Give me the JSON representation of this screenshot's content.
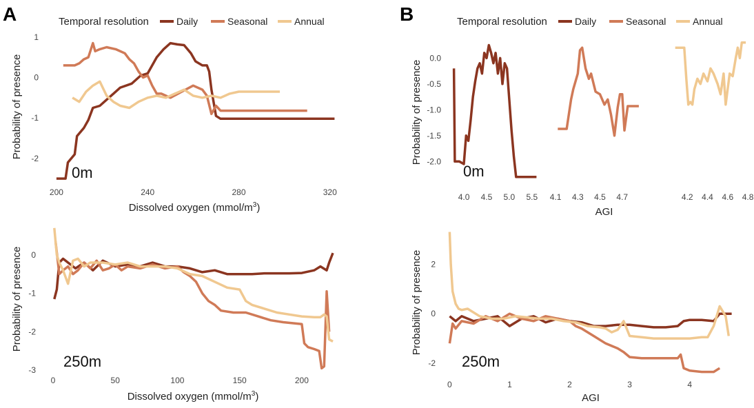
{
  "panel_letters": {
    "a": "A",
    "b": "B"
  },
  "legends": {
    "title": "Temporal resolution",
    "items": [
      {
        "label": "Daily",
        "color": "#8B3520"
      },
      {
        "label": "Seasonal",
        "color": "#D07A57"
      },
      {
        "label": "Annual",
        "color": "#F0C890"
      }
    ]
  },
  "chart_data": [
    {
      "id": "A_0m",
      "type": "line",
      "panel": "A",
      "depth": "0m",
      "xlabel": "Dissolved oxygen (mmol/m",
      "xlabel_sup": "3",
      "xlabel_end": ")",
      "ylabel": "Probability of presence",
      "xlim": [
        197,
        324
      ],
      "ylim": [
        -2.6,
        1.15
      ],
      "xticks": [
        200,
        240,
        280,
        320
      ],
      "yticks": [
        1,
        0,
        -1,
        -2
      ],
      "series": [
        {
          "name": "Daily",
          "color": "#8B3520",
          "x": [
            200,
            204,
            205,
            208,
            209,
            212,
            214,
            216,
            219,
            222,
            225,
            228,
            233,
            237,
            240,
            242,
            244,
            247,
            250,
            253,
            256,
            259,
            261,
            264,
            266,
            267,
            268,
            270,
            272,
            322
          ],
          "y": [
            -2.5,
            -2.5,
            -2.1,
            -1.9,
            -1.45,
            -1.25,
            -1.05,
            -0.75,
            -0.7,
            -0.55,
            -0.4,
            -0.25,
            -0.15,
            0.05,
            0.1,
            0.3,
            0.5,
            0.7,
            0.85,
            0.82,
            0.8,
            0.6,
            0.4,
            0.3,
            0.3,
            0.15,
            -0.3,
            -0.95,
            -1.02,
            -1.02
          ]
        },
        {
          "name": "Seasonal",
          "color": "#D07A57",
          "x": [
            203,
            208,
            210,
            212,
            214,
            216,
            217,
            219,
            222,
            226,
            230,
            232,
            234,
            236,
            238,
            240,
            242,
            244,
            246,
            250,
            255,
            260,
            264,
            266,
            268,
            270,
            272,
            276,
            280,
            310
          ],
          "y": [
            0.3,
            0.3,
            0.35,
            0.45,
            0.5,
            0.85,
            0.65,
            0.7,
            0.75,
            0.7,
            0.6,
            0.45,
            0.35,
            0.15,
            0.0,
            0.05,
            -0.2,
            -0.4,
            -0.4,
            -0.5,
            -0.35,
            -0.2,
            -0.3,
            -0.45,
            -0.9,
            -0.7,
            -0.82,
            -0.82,
            -0.82,
            -0.82
          ]
        },
        {
          "name": "Annual",
          "color": "#F0C890",
          "x": [
            207,
            210,
            213,
            216,
            219,
            222,
            225,
            228,
            232,
            236,
            240,
            244,
            248,
            252,
            256,
            260,
            264,
            268,
            272,
            276,
            280,
            285,
            290,
            298
          ],
          "y": [
            -0.5,
            -0.6,
            -0.35,
            -0.2,
            -0.1,
            -0.45,
            -0.6,
            -0.7,
            -0.75,
            -0.6,
            -0.5,
            -0.45,
            -0.5,
            -0.4,
            -0.3,
            -0.45,
            -0.5,
            -0.45,
            -0.5,
            -0.4,
            -0.35,
            -0.35,
            -0.35,
            -0.35
          ]
        }
      ]
    },
    {
      "id": "A_250m",
      "type": "line",
      "panel": "A",
      "depth": "250m",
      "xlabel": "Dissolved oxygen (mmol/m",
      "xlabel_sup": "3",
      "xlabel_end": ")",
      "ylabel": "Probability of presence",
      "xlim": [
        -5,
        230
      ],
      "ylim": [
        -3.05,
        0.75
      ],
      "xticks": [
        0,
        50,
        100,
        150,
        200
      ],
      "yticks": [
        0,
        -1,
        -2,
        -3
      ],
      "series": [
        {
          "name": "Daily",
          "color": "#8B3520",
          "x": [
            1,
            3,
            5,
            8,
            12,
            18,
            25,
            32,
            40,
            50,
            60,
            70,
            80,
            90,
            100,
            110,
            120,
            130,
            140,
            150,
            160,
            170,
            180,
            190,
            200,
            210,
            215,
            220,
            222,
            225
          ],
          "y": [
            -1.15,
            -0.9,
            -0.2,
            -0.1,
            -0.2,
            -0.35,
            -0.2,
            -0.4,
            -0.15,
            -0.3,
            -0.25,
            -0.3,
            -0.2,
            -0.3,
            -0.3,
            -0.35,
            -0.45,
            -0.4,
            -0.5,
            -0.5,
            -0.5,
            -0.48,
            -0.48,
            -0.48,
            -0.47,
            -0.4,
            -0.3,
            -0.4,
            -0.2,
            0.05
          ]
        },
        {
          "name": "Seasonal",
          "color": "#D07A57",
          "x": [
            2,
            5,
            8,
            12,
            16,
            20,
            25,
            30,
            35,
            40,
            45,
            50,
            55,
            60,
            70,
            80,
            90,
            100,
            105,
            110,
            115,
            120,
            125,
            130,
            135,
            145,
            155,
            165,
            175,
            185,
            200,
            202,
            205,
            210,
            214,
            216,
            218,
            220,
            222
          ],
          "y": [
            0.35,
            -0.5,
            -0.4,
            -0.3,
            -0.5,
            -0.4,
            -0.2,
            -0.35,
            -0.15,
            -0.4,
            -0.35,
            -0.25,
            -0.4,
            -0.3,
            -0.35,
            -0.25,
            -0.35,
            -0.3,
            -0.45,
            -0.55,
            -0.7,
            -1.0,
            -1.2,
            -1.3,
            -1.45,
            -1.5,
            -1.5,
            -1.6,
            -1.7,
            -1.75,
            -1.8,
            -2.3,
            -2.4,
            -2.45,
            -2.5,
            -2.95,
            -2.9,
            -0.95,
            -2.0
          ]
        },
        {
          "name": "Annual",
          "color": "#F0C890",
          "x": [
            1,
            3,
            5,
            8,
            12,
            16,
            20,
            25,
            30,
            40,
            50,
            60,
            70,
            80,
            90,
            100,
            110,
            120,
            130,
            140,
            150,
            155,
            160,
            170,
            180,
            190,
            200,
            210,
            215,
            218,
            220,
            222,
            225
          ],
          "y": [
            0.7,
            0.0,
            -0.2,
            -0.4,
            -0.75,
            -0.15,
            -0.1,
            -0.3,
            -0.2,
            -0.2,
            -0.25,
            -0.2,
            -0.3,
            -0.3,
            -0.3,
            -0.35,
            -0.5,
            -0.55,
            -0.7,
            -0.85,
            -0.9,
            -1.2,
            -1.3,
            -1.4,
            -1.5,
            -1.55,
            -1.6,
            -1.62,
            -1.62,
            -1.55,
            -1.6,
            -2.2,
            -2.25
          ]
        }
      ]
    },
    {
      "id": "B_0m",
      "type": "line",
      "panel": "B",
      "depth": "0m",
      "xlabel": "AGI",
      "ylabel": "Probability of presence",
      "ylim": [
        -2.45,
        0.35
      ],
      "yticks": [
        0.0,
        -0.5,
        -1.0,
        -1.5,
        -2.0
      ],
      "subplots": [
        {
          "name": "Daily",
          "color": "#8B3520",
          "xlim": [
            3.65,
            5.7
          ],
          "xticks": [
            4.0,
            4.5,
            5.0,
            5.5
          ],
          "x": [
            3.78,
            3.8,
            3.85,
            3.9,
            4.0,
            4.05,
            4.1,
            4.15,
            4.2,
            4.25,
            4.3,
            4.35,
            4.4,
            4.45,
            4.5,
            4.55,
            4.6,
            4.65,
            4.7,
            4.75,
            4.8,
            4.85,
            4.9,
            4.95,
            5.0,
            5.05,
            5.1,
            5.15,
            5.2,
            5.6
          ],
          "y": [
            -0.2,
            -2.0,
            -2.0,
            -2.0,
            -2.05,
            -1.5,
            -1.6,
            -1.2,
            -0.75,
            -0.45,
            -0.2,
            -0.1,
            -0.3,
            0.1,
            0.0,
            0.25,
            0.1,
            -0.1,
            0.1,
            -0.3,
            0.0,
            -0.5,
            -0.1,
            -0.2,
            -0.8,
            -1.4,
            -1.9,
            -2.3,
            -2.3,
            -2.3
          ]
        },
        {
          "name": "Seasonal",
          "color": "#D07A57",
          "x": [
            4.12,
            4.2,
            4.24,
            4.26,
            4.3,
            4.32,
            4.34,
            4.37,
            4.4,
            4.42,
            4.46,
            4.5,
            4.54,
            4.57,
            4.6,
            4.63,
            4.66,
            4.68,
            4.7,
            4.72,
            4.75,
            4.8,
            4.85
          ],
          "y": [
            -1.37,
            -1.37,
            -0.8,
            -0.6,
            -0.3,
            0.15,
            0.2,
            -0.2,
            -0.4,
            -0.3,
            -0.65,
            -0.7,
            -0.9,
            -0.8,
            -1.1,
            -1.5,
            -0.95,
            -0.7,
            -0.7,
            -1.4,
            -0.93,
            -0.93,
            -0.93
          ]
        },
        {
          "name": "Annual",
          "color": "#F0C890",
          "xlim": [
            3.85,
            4.82
          ],
          "xticks": [
            4.2,
            4.4,
            4.6,
            4.8
          ],
          "x": [
            4.08,
            4.13,
            4.17,
            4.19,
            4.21,
            4.23,
            4.25,
            4.27,
            4.3,
            4.33,
            4.36,
            4.4,
            4.43,
            4.46,
            4.5,
            4.53,
            4.56,
            4.58,
            4.6,
            4.62,
            4.65,
            4.68,
            4.7,
            4.72,
            4.74,
            4.78
          ],
          "y": [
            0.2,
            0.2,
            0.2,
            -0.4,
            -0.9,
            -0.85,
            -0.9,
            -0.6,
            -0.4,
            -0.5,
            -0.3,
            -0.45,
            -0.2,
            -0.3,
            -0.5,
            -0.7,
            -0.3,
            -0.9,
            -0.6,
            -0.3,
            -0.35,
            0.0,
            0.2,
            0.0,
            0.3,
            0.3
          ]
        }
      ]
    },
    {
      "id": "B_250m",
      "type": "line",
      "panel": "B",
      "depth": "250m",
      "xlabel": "AGI",
      "ylabel": "Probability of presence",
      "xlim": [
        -0.05,
        4.75
      ],
      "ylim": [
        -2.5,
        3.4
      ],
      "xticks": [
        0,
        1,
        2,
        3,
        4
      ],
      "yticks": [
        2,
        0,
        -2
      ],
      "series": [
        {
          "name": "Daily",
          "color": "#8B3520",
          "x": [
            0.0,
            0.1,
            0.2,
            0.4,
            0.6,
            0.8,
            1.0,
            1.2,
            1.4,
            1.6,
            1.8,
            2.0,
            2.2,
            2.4,
            2.6,
            2.8,
            3.0,
            3.2,
            3.4,
            3.6,
            3.8,
            3.9,
            4.0,
            4.2,
            4.4,
            4.5,
            4.6,
            4.7
          ],
          "y": [
            -0.1,
            -0.3,
            -0.1,
            -0.3,
            -0.2,
            -0.1,
            -0.5,
            -0.2,
            -0.1,
            -0.35,
            -0.2,
            -0.3,
            -0.35,
            -0.5,
            -0.5,
            -0.45,
            -0.45,
            -0.5,
            -0.55,
            -0.55,
            -0.5,
            -0.3,
            -0.25,
            -0.25,
            -0.3,
            0.0,
            0.0,
            0.0
          ]
        },
        {
          "name": "Seasonal",
          "color": "#D07A57",
          "x": [
            0.0,
            0.05,
            0.1,
            0.2,
            0.4,
            0.6,
            0.8,
            1.0,
            1.2,
            1.4,
            1.6,
            1.8,
            2.0,
            2.1,
            2.2,
            2.4,
            2.6,
            2.8,
            2.9,
            3.0,
            3.2,
            3.4,
            3.6,
            3.8,
            3.85,
            3.9,
            4.0,
            4.2,
            4.4,
            4.5
          ],
          "y": [
            -1.2,
            -0.4,
            -0.6,
            -0.3,
            -0.4,
            -0.1,
            -0.3,
            0.0,
            -0.2,
            -0.3,
            -0.1,
            -0.2,
            -0.3,
            -0.5,
            -0.6,
            -0.9,
            -1.2,
            -1.4,
            -1.55,
            -1.75,
            -1.8,
            -1.8,
            -1.8,
            -1.8,
            -1.65,
            -2.2,
            -2.3,
            -2.35,
            -2.35,
            -2.2
          ]
        },
        {
          "name": "Annual",
          "color": "#F0C890",
          "x": [
            0.0,
            0.02,
            0.05,
            0.1,
            0.15,
            0.2,
            0.3,
            0.5,
            0.7,
            0.9,
            1.1,
            1.3,
            1.5,
            1.7,
            1.9,
            2.1,
            2.3,
            2.5,
            2.6,
            2.7,
            2.8,
            2.9,
            3.0,
            3.2,
            3.4,
            3.6,
            3.8,
            4.0,
            4.2,
            4.3,
            4.4,
            4.5,
            4.6,
            4.65
          ],
          "y": [
            3.3,
            2.0,
            0.9,
            0.4,
            0.2,
            0.15,
            0.2,
            -0.1,
            -0.2,
            -0.2,
            -0.1,
            -0.15,
            -0.2,
            -0.2,
            -0.3,
            -0.35,
            -0.5,
            -0.55,
            -0.6,
            -0.75,
            -0.65,
            -0.3,
            -0.9,
            -0.95,
            -1.0,
            -1.0,
            -1.0,
            -1.0,
            -0.95,
            -0.95,
            -0.5,
            0.3,
            -0.1,
            -0.9
          ]
        }
      ]
    }
  ]
}
